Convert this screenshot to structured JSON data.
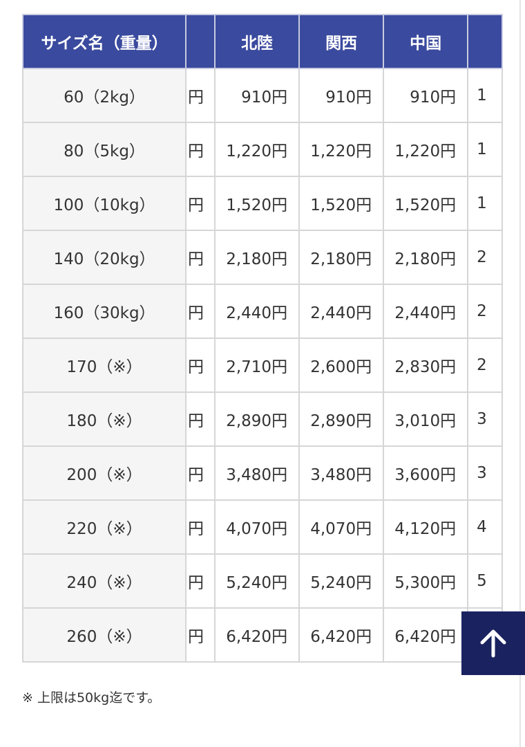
{
  "table": {
    "headers": [
      "サイズ名（重量）",
      "",
      "北陸",
      "関西",
      "中国",
      ""
    ],
    "rows": [
      {
        "size": "60（2kg）",
        "clipped_left": "円",
        "hokuriku": "910円",
        "kansai": "910円",
        "chugoku": "910円",
        "clipped_right": "1"
      },
      {
        "size": "80（5kg）",
        "clipped_left": "円",
        "hokuriku": "1,220円",
        "kansai": "1,220円",
        "chugoku": "1,220円",
        "clipped_right": "1"
      },
      {
        "size": "100（10kg）",
        "clipped_left": "円",
        "hokuriku": "1,520円",
        "kansai": "1,520円",
        "chugoku": "1,520円",
        "clipped_right": "1"
      },
      {
        "size": "140（20kg）",
        "clipped_left": "円",
        "hokuriku": "2,180円",
        "kansai": "2,180円",
        "chugoku": "2,180円",
        "clipped_right": "2"
      },
      {
        "size": "160（30kg）",
        "clipped_left": "円",
        "hokuriku": "2,440円",
        "kansai": "2,440円",
        "chugoku": "2,440円",
        "clipped_right": "2"
      },
      {
        "size": "170（※）",
        "clipped_left": "円",
        "hokuriku": "2,710円",
        "kansai": "2,600円",
        "chugoku": "2,830円",
        "clipped_right": "2"
      },
      {
        "size": "180（※）",
        "clipped_left": "円",
        "hokuriku": "2,890円",
        "kansai": "2,890円",
        "chugoku": "3,010円",
        "clipped_right": "3"
      },
      {
        "size": "200（※）",
        "clipped_left": "円",
        "hokuriku": "3,480円",
        "kansai": "3,480円",
        "chugoku": "3,600円",
        "clipped_right": "3"
      },
      {
        "size": "220（※）",
        "clipped_left": "円",
        "hokuriku": "4,070円",
        "kansai": "4,070円",
        "chugoku": "4,120円",
        "clipped_right": "4"
      },
      {
        "size": "240（※）",
        "clipped_left": "円",
        "hokuriku": "5,240円",
        "kansai": "5,240円",
        "chugoku": "5,300円",
        "clipped_right": "5"
      },
      {
        "size": "260（※）",
        "clipped_left": "円",
        "hokuriku": "6,420円",
        "kansai": "6,420円",
        "chugoku": "6,420円",
        "clipped_right": ""
      }
    ]
  },
  "note": "※ 上限は50kg迄です。",
  "back_to_top": {
    "icon": "arrow-up-icon",
    "color": "#1a2360"
  },
  "colors": {
    "header": "#3a4a9e"
  }
}
